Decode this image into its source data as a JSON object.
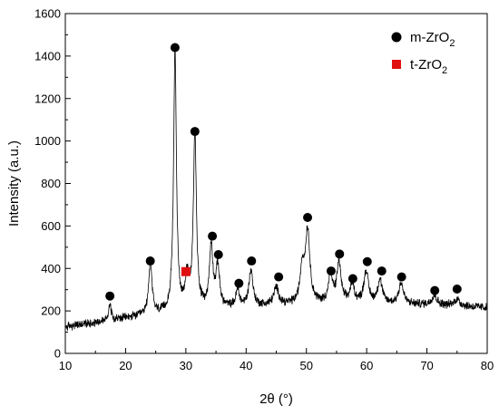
{
  "chart_data": {
    "type": "line",
    "title": "",
    "xlabel": "2θ (°)",
    "ylabel": "Intensity (a.u.)",
    "xlim": [
      10,
      80
    ],
    "ylim": [
      0,
      1600
    ],
    "x_ticks": [
      "10",
      "20",
      "30",
      "40",
      "50",
      "60",
      "70",
      "80"
    ],
    "y_ticks": [
      "0",
      "200",
      "400",
      "600",
      "800",
      "1000",
      "1200",
      "1400",
      "1600"
    ],
    "grid": false,
    "legend_position": "top-right",
    "legend": [
      {
        "label_main": "m-ZrO",
        "label_sub": "2",
        "marker": "circle",
        "color": "#000000"
      },
      {
        "label_main": "t-ZrO",
        "label_sub": "2",
        "marker": "square",
        "color": "#e01010"
      }
    ],
    "pattern": {
      "name": "XRD pattern",
      "color": "#000000",
      "baseline": [
        [
          10,
          125
        ],
        [
          15,
          145
        ],
        [
          20,
          165
        ],
        [
          25,
          180
        ],
        [
          30,
          195
        ],
        [
          35,
          210
        ],
        [
          45,
          225
        ],
        [
          55,
          235
        ],
        [
          65,
          232
        ],
        [
          75,
          225
        ],
        [
          80,
          215
        ]
      ],
      "peaks": [
        {
          "x": 17.4,
          "height": 80,
          "width": 0.25
        },
        {
          "x": 24.1,
          "height": 240,
          "width": 0.35
        },
        {
          "x": 28.2,
          "height": 1230,
          "width": 0.28
        },
        {
          "x": 30.2,
          "height": 140,
          "width": 0.4
        },
        {
          "x": 31.5,
          "height": 830,
          "width": 0.3
        },
        {
          "x": 34.2,
          "height": 290,
          "width": 0.35
        },
        {
          "x": 35.3,
          "height": 190,
          "width": 0.35
        },
        {
          "x": 38.6,
          "height": 80,
          "width": 0.35
        },
        {
          "x": 40.8,
          "height": 170,
          "width": 0.4
        },
        {
          "x": 45.0,
          "height": 80,
          "width": 0.5
        },
        {
          "x": 49.3,
          "height": 160,
          "width": 0.4
        },
        {
          "x": 50.2,
          "height": 340,
          "width": 0.45
        },
        {
          "x": 54.0,
          "height": 130,
          "width": 0.4
        },
        {
          "x": 55.4,
          "height": 190,
          "width": 0.4
        },
        {
          "x": 57.6,
          "height": 90,
          "width": 0.4
        },
        {
          "x": 59.9,
          "height": 150,
          "width": 0.45
        },
        {
          "x": 62.2,
          "height": 110,
          "width": 0.45
        },
        {
          "x": 65.7,
          "height": 100,
          "width": 0.45
        },
        {
          "x": 71.2,
          "height": 45,
          "width": 0.5
        },
        {
          "x": 75.0,
          "height": 30,
          "width": 0.5
        }
      ]
    },
    "m_ZrO2_markers": [
      {
        "x": 17.4,
        "y": 270
      },
      {
        "x": 24.1,
        "y": 435
      },
      {
        "x": 28.2,
        "y": 1440
      },
      {
        "x": 31.5,
        "y": 1045
      },
      {
        "x": 34.4,
        "y": 552
      },
      {
        "x": 35.4,
        "y": 465
      },
      {
        "x": 38.8,
        "y": 330
      },
      {
        "x": 40.9,
        "y": 435
      },
      {
        "x": 45.4,
        "y": 360
      },
      {
        "x": 50.2,
        "y": 640
      },
      {
        "x": 54.1,
        "y": 388
      },
      {
        "x": 55.5,
        "y": 468
      },
      {
        "x": 57.7,
        "y": 352
      },
      {
        "x": 60.1,
        "y": 432
      },
      {
        "x": 62.5,
        "y": 388
      },
      {
        "x": 65.8,
        "y": 360
      },
      {
        "x": 71.3,
        "y": 296
      },
      {
        "x": 75.0,
        "y": 303
      }
    ],
    "t_ZrO2_markers": [
      {
        "x": 30.0,
        "y": 385
      }
    ]
  }
}
